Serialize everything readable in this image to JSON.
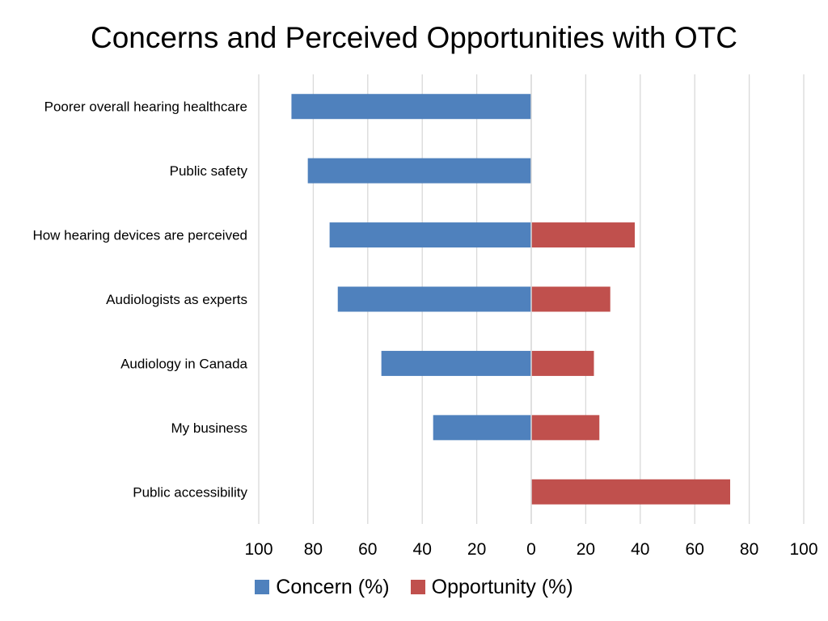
{
  "chart_data": {
    "type": "bar",
    "orientation": "horizontal",
    "layout": "diverging",
    "title": "Concerns and Perceived Opportunities with OTC",
    "categories": [
      "Poorer overall hearing healthcare",
      "Public safety",
      "How hearing devices are perceived",
      "Audiologists as experts",
      "Audiology in Canada",
      "My business",
      "Public accessibility"
    ],
    "series": [
      {
        "name": "Concern (%)",
        "color": "#4f81bd",
        "direction": "left",
        "values": [
          88,
          82,
          74,
          71,
          55,
          36,
          0
        ]
      },
      {
        "name": "Opportunity (%)",
        "color": "#c0504d",
        "direction": "right",
        "values": [
          0,
          0,
          38,
          29,
          23,
          25,
          73
        ]
      }
    ],
    "x_ticks": [
      "100",
      "80",
      "60",
      "40",
      "20",
      "0",
      "20",
      "40",
      "60",
      "80",
      "100"
    ],
    "xlim": [
      -100,
      100
    ],
    "grid": "vertical",
    "legend_position": "bottom"
  }
}
